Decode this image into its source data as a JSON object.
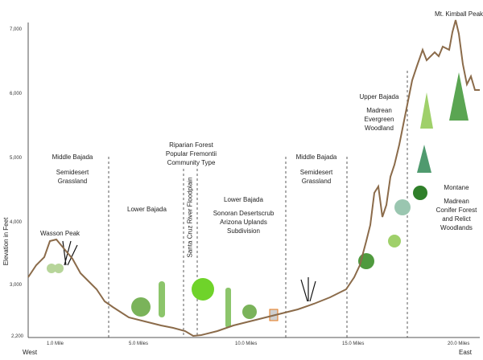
{
  "yaxis": {
    "label": "Elevation in Feet",
    "ticks": [
      "7,000",
      "6,000",
      "5,000",
      "4,000",
      "3,000",
      "2,200"
    ]
  },
  "xaxis": {
    "ticks": [
      "1.0 Mile",
      "5.0 Miles",
      "10.0 Miles",
      "15.0 Miles",
      "20.0 Miles"
    ],
    "west": "West",
    "east": "East"
  },
  "peaks": {
    "wasson": "Wasson Peak",
    "kimball": "Mt. Kimball Peak"
  },
  "zones": [
    {
      "l1": "Middle Bajada",
      "l2": "Semidesert",
      "l3": "Grassland"
    },
    {
      "l1": "Lower Bajada"
    },
    {
      "l1": "Riparian Forest",
      "l2": "Popular Fremontii",
      "l3": "Community Type"
    },
    {
      "l1": "Santa Cruz River Floodplain"
    },
    {
      "l1": "Lower Bajada",
      "l2": "Sonoran Desertscrub",
      "l3": "Arizona Uplands",
      "l4": "Subdivision"
    },
    {
      "l1": "Middle Bajada",
      "l2": "Semidesert",
      "l3": "Grassland"
    },
    {
      "l1": "Upper Bajada",
      "l2": "Madrean",
      "l3": "Evergreen",
      "l4": "Woodland"
    },
    {
      "l1": "Montane",
      "l2": "Madrean",
      "l3": "Conifer Forest",
      "l4": "and Relict",
      "l5": "Woodlands"
    }
  ]
}
